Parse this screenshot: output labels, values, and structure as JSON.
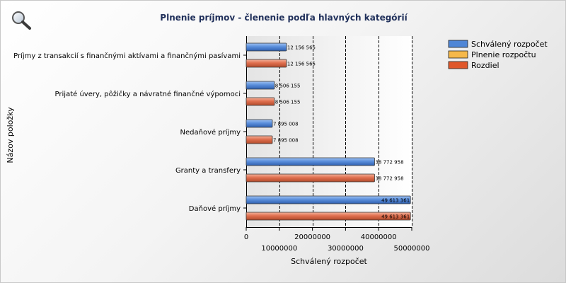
{
  "chart_data": {
    "type": "bar",
    "orientation": "horizontal",
    "title": "Plnenie príjmov - členenie podľa hlavných kategórií",
    "xlabel": "Schválený rozpočet",
    "ylabel": "Názov položky",
    "categories": [
      "Príjmy z transakcií s finančnými aktívami a finančnými pasívami",
      "Prijaté úvery, pôžičky a návratné finančné výpomoci",
      "Nedaňové príjmy",
      "Granty a transfery",
      "Daňové príjmy"
    ],
    "series": [
      {
        "name": "Schválený rozpočet",
        "color": "#4f86d6",
        "values": [
          12156565,
          8506155,
          7895008,
          38772958,
          49613361
        ],
        "labels": [
          "12 156 565",
          "8 506 155",
          "7 895 008",
          "38 772 958",
          "49 613 361"
        ]
      },
      {
        "name": "Rozdiel",
        "color": "#e0704f",
        "values": [
          12156565,
          8506155,
          7895008,
          38772958,
          49613361
        ],
        "labels": [
          "12 156 565",
          "8 506 155",
          "7 895 008",
          "38 772 958",
          "49 613 361"
        ]
      }
    ],
    "xlim": [
      0,
      50000000
    ],
    "xticks": [
      0,
      10000000,
      20000000,
      30000000,
      40000000,
      50000000
    ],
    "xtick_labels": [
      "0",
      "10000000",
      "20000000",
      "30000000",
      "40000000",
      "50000000"
    ],
    "grid": true,
    "legend_position": "top-right",
    "legend": [
      {
        "name": "Schválený rozpočet",
        "color": "#4f86d6"
      },
      {
        "name": "Plnenie rozpočtu",
        "color": "#f5b84a"
      },
      {
        "name": "Rozdiel",
        "color": "#e0572a"
      }
    ]
  },
  "icons": {
    "zoom": "magnifier-icon"
  }
}
